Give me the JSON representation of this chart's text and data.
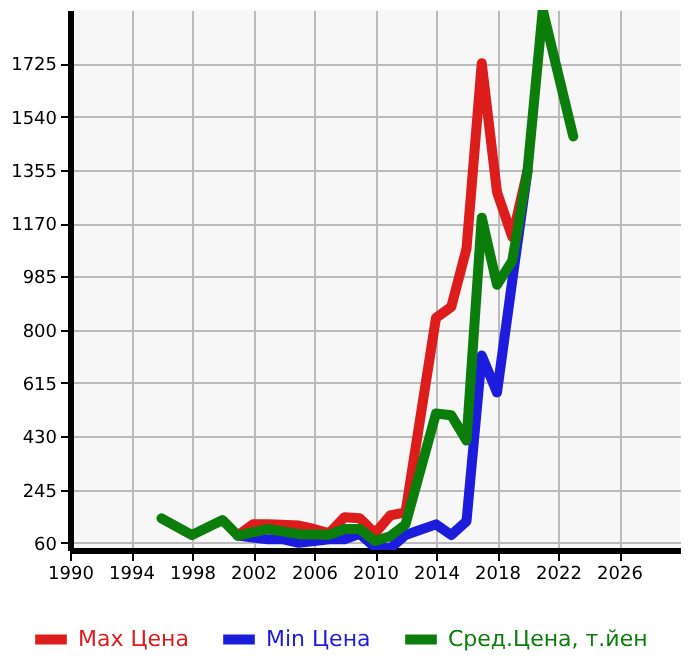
{
  "chart_data": {
    "type": "line",
    "xlim": [
      1990,
      2030
    ],
    "xticks": [
      1990,
      1994,
      1998,
      2002,
      2006,
      2010,
      2014,
      2018,
      2022,
      2026
    ],
    "ylim": [
      35,
      1910
    ],
    "yticks": [
      60,
      245,
      430,
      615,
      800,
      985,
      1170,
      1355,
      1540,
      1725
    ],
    "grid": true,
    "legend": "bottom",
    "line_style": "solid",
    "marker": "none",
    "series": [
      {
        "name": "Max Цена",
        "color": "#dd1c1c",
        "x": [
          2001,
          2002,
          2003,
          2005,
          2006,
          2007,
          2008,
          2009,
          2010,
          2011,
          2012,
          2014,
          2015,
          2016,
          2017,
          2018,
          2019,
          2020
        ],
        "values": [
          85,
          124,
          124,
          120,
          108,
          93,
          149,
          145,
          93,
          155,
          166,
          841,
          879,
          1081,
          1725,
          1278,
          1122,
          1351
        ]
      },
      {
        "name": "Min Цена",
        "color": "#1c1cdd",
        "x": [
          2001,
          2003,
          2004,
          2005,
          2007,
          2008,
          2009,
          2010,
          2011,
          2012,
          2014,
          2015,
          2016,
          2017,
          2018,
          2019,
          2020
        ],
        "values": [
          85,
          72,
          72,
          60,
          72,
          72,
          91,
          45,
          41,
          87,
          124,
          87,
          135,
          710,
          582,
          970,
          1351
        ]
      },
      {
        "name": "Сред.Цена, т.йен",
        "color": "#0b7d0b",
        "x": [
          1996,
          1998,
          2000,
          2001,
          2003,
          2005,
          2007,
          2008,
          2009,
          2010,
          2011,
          2012,
          2014,
          2015,
          2016,
          2017,
          2018,
          2019,
          2020,
          2021,
          2023
        ],
        "values": [
          145,
          87,
          139,
          85,
          108,
          90,
          88,
          108,
          108,
          66,
          83,
          124,
          509,
          503,
          415,
          1189,
          956,
          1039,
          1351,
          1910,
          1471
        ]
      }
    ]
  }
}
